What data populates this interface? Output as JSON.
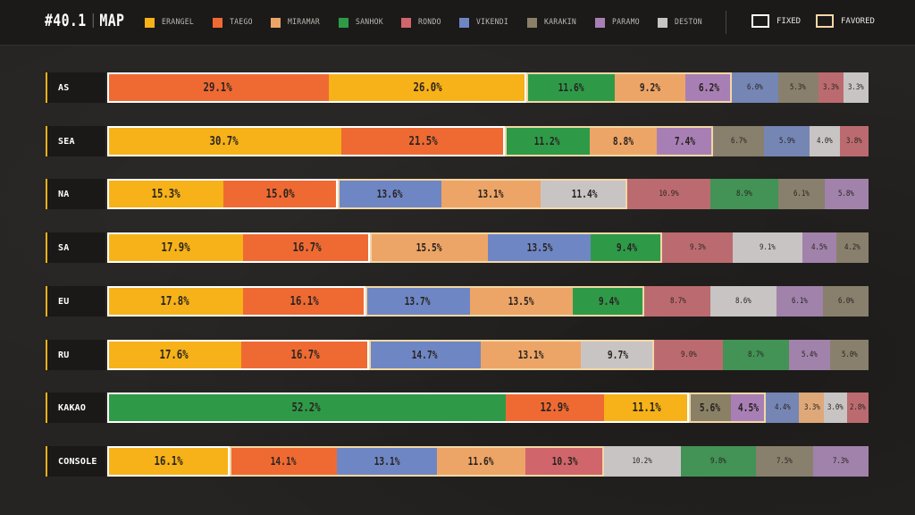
{
  "header": {
    "title_num": "#40.1",
    "title_word": "MAP",
    "key_fixed": "FIXED",
    "key_favored": "FAVORED"
  },
  "legend": [
    {
      "name": "ERANGEL",
      "color": "#f6b218"
    },
    {
      "name": "TAEGO",
      "color": "#ef6a33"
    },
    {
      "name": "MIRAMAR",
      "color": "#eda567"
    },
    {
      "name": "SANHOK",
      "color": "#2e9a48"
    },
    {
      "name": "RONDO",
      "color": "#d0656b"
    },
    {
      "name": "VIKENDI",
      "color": "#6f86c4"
    },
    {
      "name": "KARAKIN",
      "color": "#8a8066"
    },
    {
      "name": "PARAMO",
      "color": "#a87fb5"
    },
    {
      "name": "DESTON",
      "color": "#c9c4c4"
    }
  ],
  "chart_data": {
    "type": "bar",
    "orientation": "horizontal",
    "stacked": true,
    "unit": "%",
    "categories": [
      "AS",
      "SEA",
      "NA",
      "SA",
      "EU",
      "RU",
      "KAKAO",
      "CONSOLE"
    ],
    "rows": [
      {
        "region": "AS",
        "segments": [
          {
            "map": "TAEGO",
            "value": 29.1,
            "label": "29.1%",
            "tier": "fixed"
          },
          {
            "map": "ERANGEL",
            "value": 26.0,
            "label": "26.0%",
            "tier": "fixed"
          },
          {
            "map": "SANHOK",
            "value": 11.6,
            "label": "11.6%",
            "tier": "favored"
          },
          {
            "map": "MIRAMAR",
            "value": 9.2,
            "label": "9.2%",
            "tier": "favored"
          },
          {
            "map": "PARAMO",
            "value": 6.2,
            "label": "6.2%",
            "tier": "favored"
          },
          {
            "map": "VIKENDI",
            "value": 6.0,
            "label": "6.0%",
            "tier": "other"
          },
          {
            "map": "KARAKIN",
            "value": 5.3,
            "label": "5.3%",
            "tier": "other"
          },
          {
            "map": "RONDO",
            "value": 3.3,
            "label": "3.3%",
            "tier": "other"
          },
          {
            "map": "DESTON",
            "value": 3.3,
            "label": "3.3%",
            "tier": "other"
          }
        ]
      },
      {
        "region": "SEA",
        "segments": [
          {
            "map": "ERANGEL",
            "value": 30.7,
            "label": "30.7%",
            "tier": "fixed"
          },
          {
            "map": "TAEGO",
            "value": 21.5,
            "label": "21.5%",
            "tier": "fixed"
          },
          {
            "map": "SANHOK",
            "value": 11.2,
            "label": "11.2%",
            "tier": "favored"
          },
          {
            "map": "MIRAMAR",
            "value": 8.8,
            "label": "8.8%",
            "tier": "favored"
          },
          {
            "map": "PARAMO",
            "value": 7.4,
            "label": "7.4%",
            "tier": "favored"
          },
          {
            "map": "KARAKIN",
            "value": 6.7,
            "label": "6.7%",
            "tier": "other"
          },
          {
            "map": "VIKENDI",
            "value": 5.9,
            "label": "5.9%",
            "tier": "other"
          },
          {
            "map": "DESTON",
            "value": 4.0,
            "label": "4.0%",
            "tier": "other"
          },
          {
            "map": "RONDO",
            "value": 3.8,
            "label": "3.8%",
            "tier": "other"
          }
        ]
      },
      {
        "region": "NA",
        "segments": [
          {
            "map": "ERANGEL",
            "value": 15.3,
            "label": "15.3%",
            "tier": "fixed"
          },
          {
            "map": "TAEGO",
            "value": 15.0,
            "label": "15.0%",
            "tier": "fixed"
          },
          {
            "map": "VIKENDI",
            "value": 13.6,
            "label": "13.6%",
            "tier": "favored"
          },
          {
            "map": "MIRAMAR",
            "value": 13.1,
            "label": "13.1%",
            "tier": "favored"
          },
          {
            "map": "DESTON",
            "value": 11.4,
            "label": "11.4%",
            "tier": "favored"
          },
          {
            "map": "RONDO",
            "value": 10.9,
            "label": "10.9%",
            "tier": "other"
          },
          {
            "map": "SANHOK",
            "value": 8.9,
            "label": "8.9%",
            "tier": "other"
          },
          {
            "map": "KARAKIN",
            "value": 6.1,
            "label": "6.1%",
            "tier": "other"
          },
          {
            "map": "PARAMO",
            "value": 5.8,
            "label": "5.8%",
            "tier": "other"
          }
        ]
      },
      {
        "region": "SA",
        "segments": [
          {
            "map": "ERANGEL",
            "value": 17.9,
            "label": "17.9%",
            "tier": "fixed"
          },
          {
            "map": "TAEGO",
            "value": 16.7,
            "label": "16.7%",
            "tier": "fixed"
          },
          {
            "map": "MIRAMAR",
            "value": 15.5,
            "label": "15.5%",
            "tier": "favored"
          },
          {
            "map": "VIKENDI",
            "value": 13.5,
            "label": "13.5%",
            "tier": "favored"
          },
          {
            "map": "SANHOK",
            "value": 9.4,
            "label": "9.4%",
            "tier": "favored"
          },
          {
            "map": "RONDO",
            "value": 9.3,
            "label": "9.3%",
            "tier": "other"
          },
          {
            "map": "DESTON",
            "value": 9.1,
            "label": "9.1%",
            "tier": "other"
          },
          {
            "map": "PARAMO",
            "value": 4.5,
            "label": "4.5%",
            "tier": "other"
          },
          {
            "map": "KARAKIN",
            "value": 4.2,
            "label": "4.2%",
            "tier": "other"
          }
        ]
      },
      {
        "region": "EU",
        "segments": [
          {
            "map": "ERANGEL",
            "value": 17.8,
            "label": "17.8%",
            "tier": "fixed"
          },
          {
            "map": "TAEGO",
            "value": 16.1,
            "label": "16.1%",
            "tier": "fixed"
          },
          {
            "map": "VIKENDI",
            "value": 13.7,
            "label": "13.7%",
            "tier": "favored"
          },
          {
            "map": "MIRAMAR",
            "value": 13.5,
            "label": "13.5%",
            "tier": "favored"
          },
          {
            "map": "SANHOK",
            "value": 9.4,
            "label": "9.4%",
            "tier": "favored"
          },
          {
            "map": "RONDO",
            "value": 8.7,
            "label": "8.7%",
            "tier": "other"
          },
          {
            "map": "DESTON",
            "value": 8.6,
            "label": "8.6%",
            "tier": "other"
          },
          {
            "map": "PARAMO",
            "value": 6.1,
            "label": "6.1%",
            "tier": "other"
          },
          {
            "map": "KARAKIN",
            "value": 6.0,
            "label": "6.0%",
            "tier": "other"
          }
        ]
      },
      {
        "region": "RU",
        "segments": [
          {
            "map": "ERANGEL",
            "value": 17.6,
            "label": "17.6%",
            "tier": "fixed"
          },
          {
            "map": "TAEGO",
            "value": 16.7,
            "label": "16.7%",
            "tier": "fixed"
          },
          {
            "map": "VIKENDI",
            "value": 14.7,
            "label": "14.7%",
            "tier": "favored"
          },
          {
            "map": "MIRAMAR",
            "value": 13.1,
            "label": "13.1%",
            "tier": "favored"
          },
          {
            "map": "DESTON",
            "value": 9.7,
            "label": "9.7%",
            "tier": "favored"
          },
          {
            "map": "RONDO",
            "value": 9.0,
            "label": "9.0%",
            "tier": "other"
          },
          {
            "map": "SANHOK",
            "value": 8.7,
            "label": "8.7%",
            "tier": "other"
          },
          {
            "map": "PARAMO",
            "value": 5.4,
            "label": "5.4%",
            "tier": "other"
          },
          {
            "map": "KARAKIN",
            "value": 5.0,
            "label": "5.0%",
            "tier": "other"
          }
        ]
      },
      {
        "region": "KAKAO",
        "segments": [
          {
            "map": "SANHOK",
            "value": 52.2,
            "label": "52.2%",
            "tier": "fixed"
          },
          {
            "map": "TAEGO",
            "value": 12.9,
            "label": "12.9%",
            "tier": "fixed"
          },
          {
            "map": "ERANGEL",
            "value": 11.1,
            "label": "11.1%",
            "tier": "fixed"
          },
          {
            "map": "KARAKIN",
            "value": 5.6,
            "label": "5.6%",
            "tier": "favored"
          },
          {
            "map": "PARAMO",
            "value": 4.5,
            "label": "4.5%",
            "tier": "favored"
          },
          {
            "map": "VIKENDI",
            "value": 4.4,
            "label": "4.4%",
            "tier": "other"
          },
          {
            "map": "MIRAMAR",
            "value": 3.3,
            "label": "3.3%",
            "tier": "other"
          },
          {
            "map": "DESTON",
            "value": 3.0,
            "label": "3.0%",
            "tier": "other"
          },
          {
            "map": "RONDO",
            "value": 2.8,
            "label": "2.8%",
            "tier": "other"
          }
        ]
      },
      {
        "region": "CONSOLE",
        "segments": [
          {
            "map": "ERANGEL",
            "value": 16.1,
            "label": "16.1%",
            "tier": "fixed"
          },
          {
            "map": "TAEGO",
            "value": 14.1,
            "label": "14.1%",
            "tier": "favored"
          },
          {
            "map": "VIKENDI",
            "value": 13.1,
            "label": "13.1%",
            "tier": "favored"
          },
          {
            "map": "MIRAMAR",
            "value": 11.6,
            "label": "11.6%",
            "tier": "favored"
          },
          {
            "map": "RONDO",
            "value": 10.3,
            "label": "10.3%",
            "tier": "favored"
          },
          {
            "map": "DESTON",
            "value": 10.2,
            "label": "10.2%",
            "tier": "other"
          },
          {
            "map": "SANHOK",
            "value": 9.8,
            "label": "9.8%",
            "tier": "other"
          },
          {
            "map": "KARAKIN",
            "value": 7.5,
            "label": "7.5%",
            "tier": "other"
          },
          {
            "map": "PARAMO",
            "value": 7.3,
            "label": "7.3%",
            "tier": "other"
          }
        ]
      }
    ]
  }
}
